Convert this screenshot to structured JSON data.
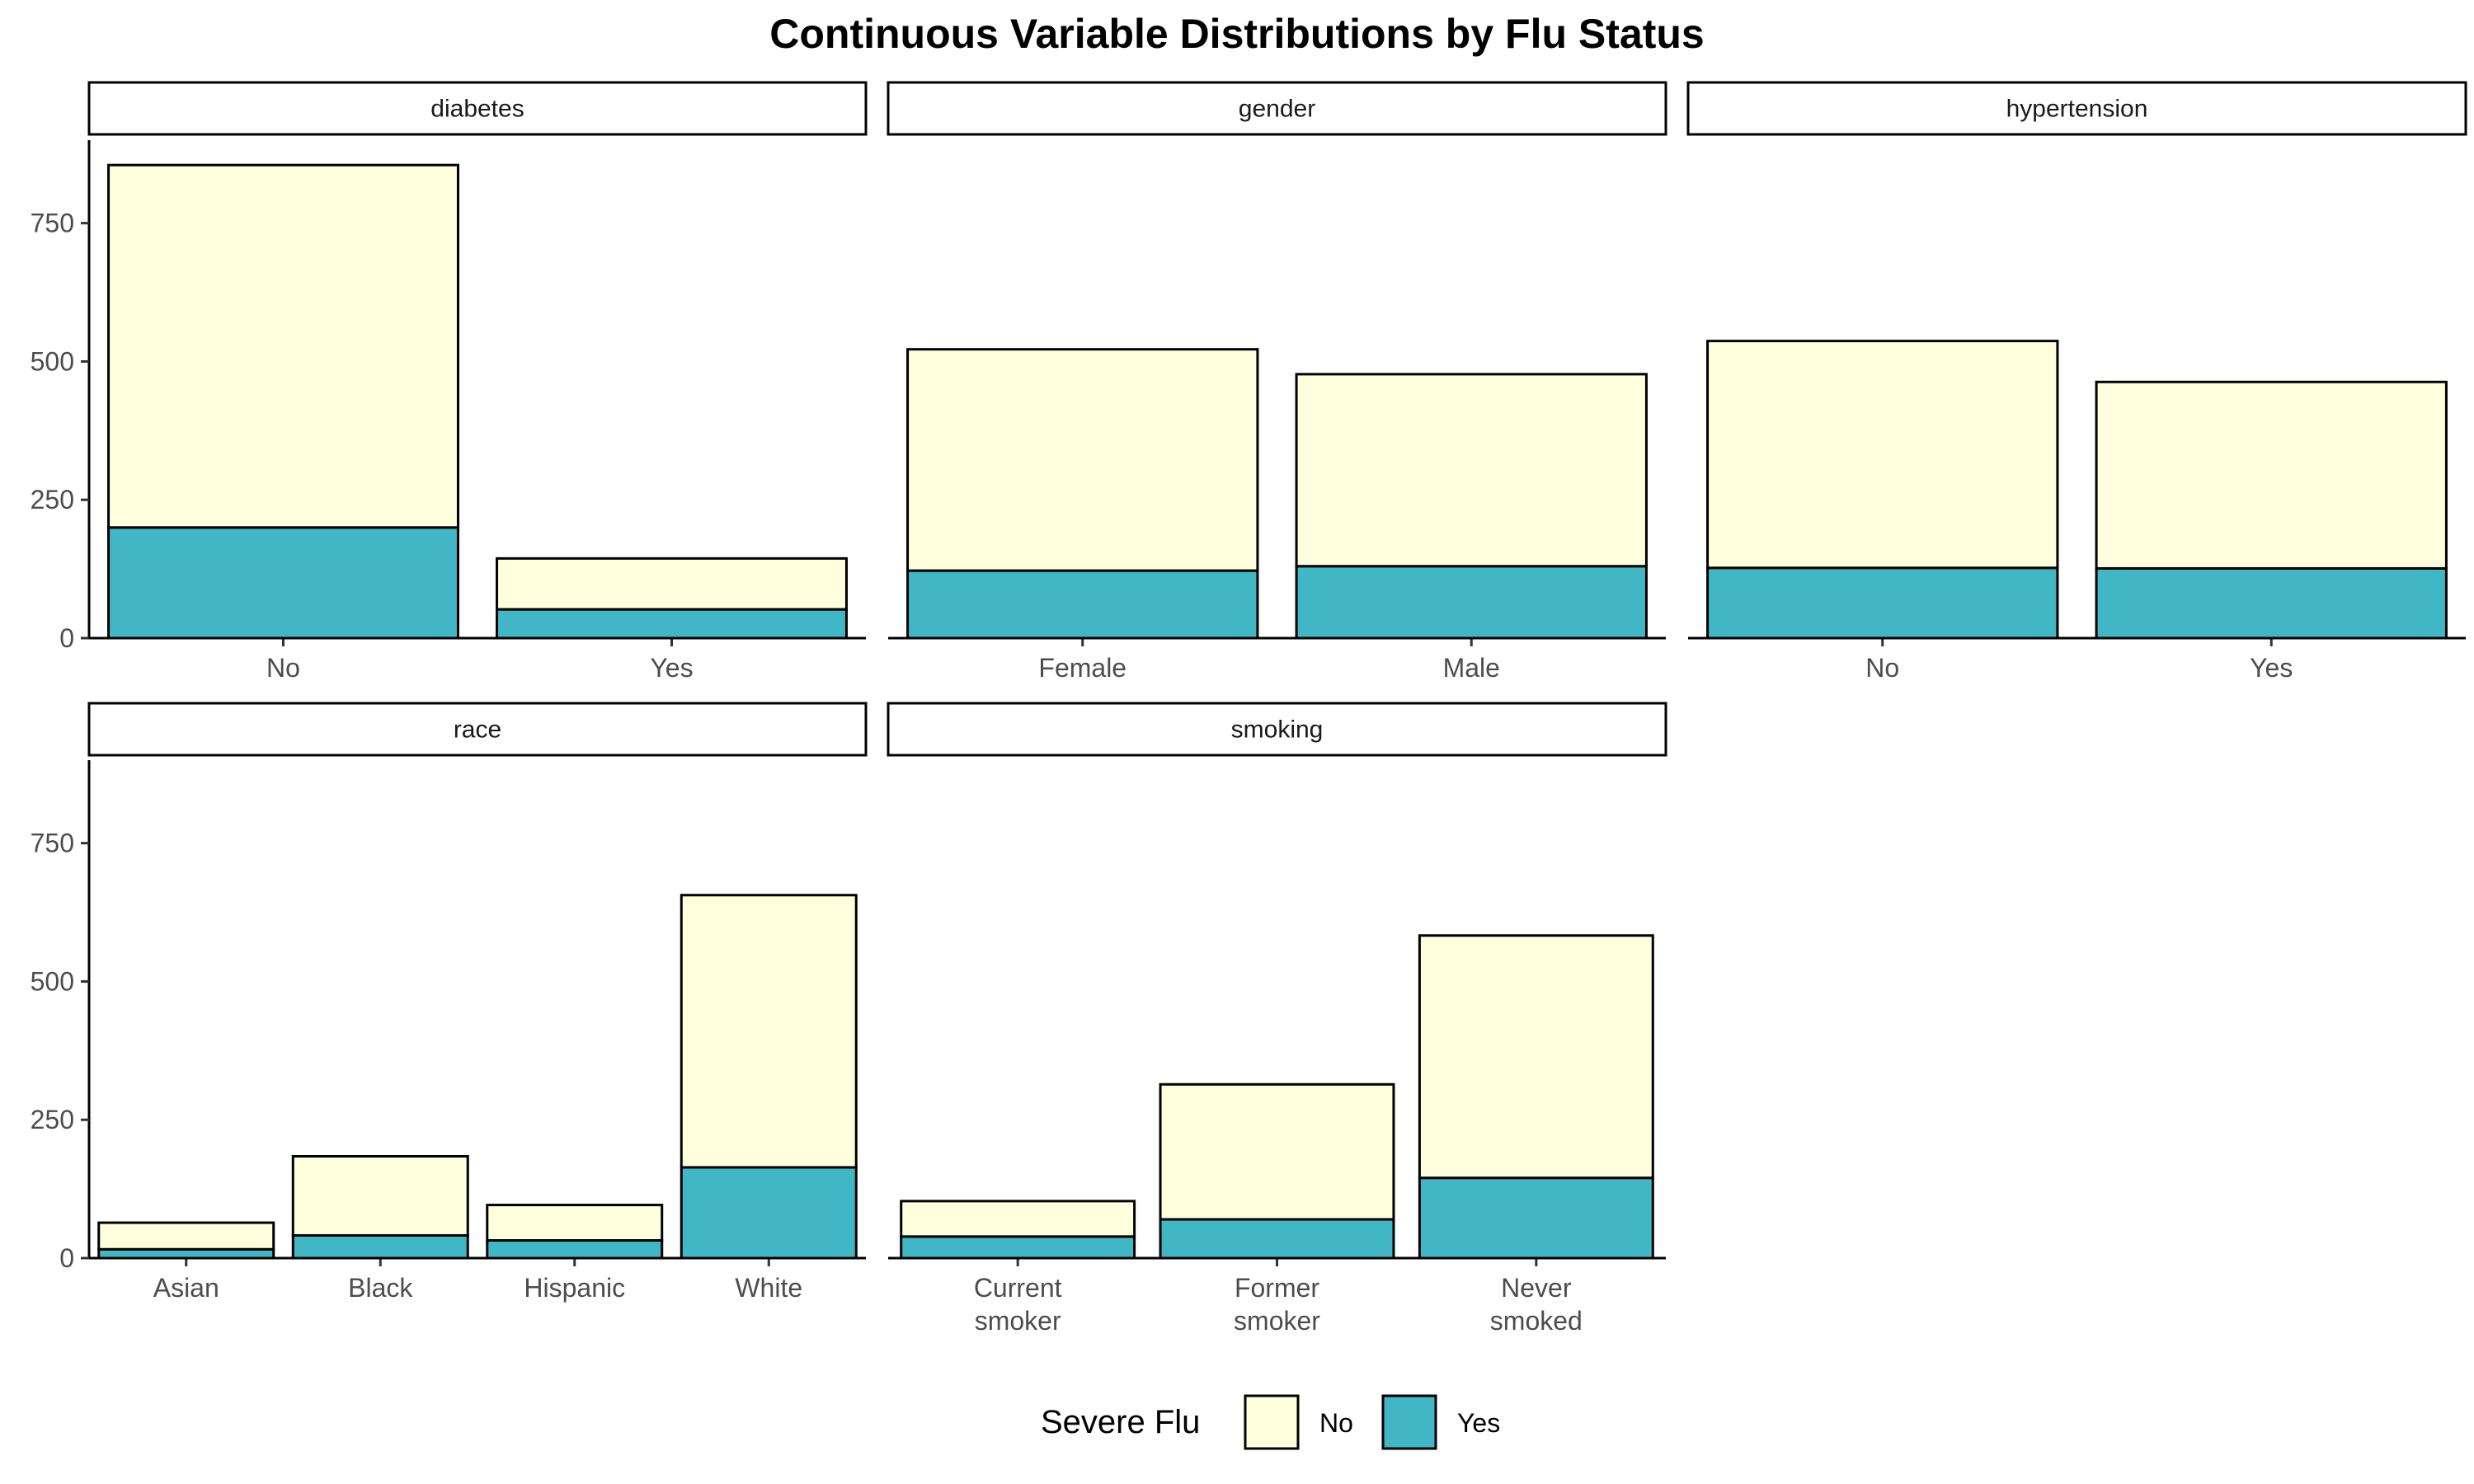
{
  "chart_data": {
    "type": "bar",
    "stacked": true,
    "title": "Continuous Variable Distributions by Flu Status",
    "ylim": [
      0,
      900
    ],
    "yticks": [
      0,
      250,
      500,
      750
    ],
    "grid": false,
    "legend": {
      "title": "Severe Flu",
      "placement": "bottom",
      "entries": [
        {
          "name": "No",
          "color": "#FFFFDD"
        },
        {
          "name": "Yes",
          "color": "#41B6C4"
        }
      ]
    },
    "panels": [
      {
        "name": "diabetes",
        "categories": [
          [
            "No"
          ],
          [
            "Yes"
          ]
        ],
        "series": [
          {
            "name": "No",
            "values": [
              655,
              92
            ]
          },
          {
            "name": "Yes",
            "values": [
              200,
              52
            ]
          }
        ]
      },
      {
        "name": "gender",
        "categories": [
          [
            "Female"
          ],
          [
            "Male"
          ]
        ],
        "series": [
          {
            "name": "No",
            "values": [
              400,
              347
            ]
          },
          {
            "name": "Yes",
            "values": [
              122,
              130
            ]
          }
        ]
      },
      {
        "name": "hypertension",
        "categories": [
          [
            "No"
          ],
          [
            "Yes"
          ]
        ],
        "series": [
          {
            "name": "No",
            "values": [
              410,
              337
            ]
          },
          {
            "name": "Yes",
            "values": [
              127,
              126
            ]
          }
        ]
      },
      {
        "name": "race",
        "categories": [
          [
            "Asian"
          ],
          [
            "Black"
          ],
          [
            "Hispanic"
          ],
          [
            "White"
          ]
        ],
        "series": [
          {
            "name": "No",
            "values": [
              48,
              143,
              64,
              492
            ]
          },
          {
            "name": "Yes",
            "values": [
              16,
              41,
              32,
              164
            ]
          }
        ]
      },
      {
        "name": "smoking",
        "categories": [
          [
            "Current",
            "smoker"
          ],
          [
            "Former",
            "smoker"
          ],
          [
            "Never",
            "smoked"
          ]
        ],
        "series": [
          {
            "name": "No",
            "values": [
              64,
              244,
              438
            ]
          },
          {
            "name": "Yes",
            "values": [
              39,
              70,
              145
            ]
          }
        ]
      }
    ]
  }
}
